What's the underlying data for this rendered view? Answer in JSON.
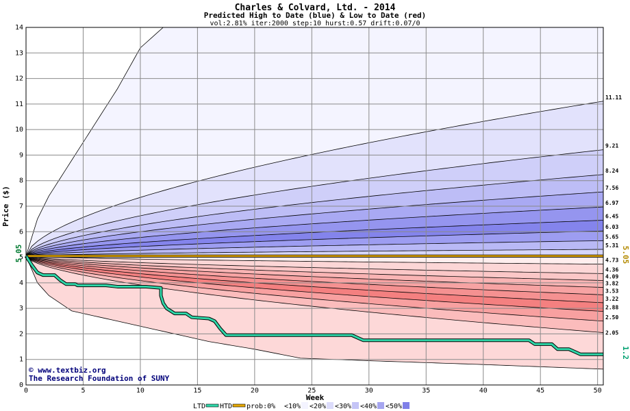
{
  "chart_data": {
    "type": "area",
    "title": "Charles & Colvard, Ltd. - 2014",
    "subtitle": "Predicted High to Date (blue) &  Low to Date (red)",
    "params": "vol:2.81% iter:2000 step:10 hurst:0.57 drift:0.07/0",
    "xlabel": "Week",
    "ylabel": "Price ($)",
    "xlim": [
      0,
      50.5
    ],
    "ylim": [
      0,
      14
    ],
    "x_ticks": [
      "0",
      "5",
      "10",
      "15",
      "20",
      "25",
      "30",
      "35",
      "40",
      "45",
      "50"
    ],
    "y_ticks": [
      "0",
      "1",
      "2",
      "3",
      "4",
      "5",
      "6",
      "7",
      "8",
      "9",
      "10",
      "11",
      "12",
      "13",
      "14"
    ],
    "grid": true,
    "start_price": 5.05,
    "start_label": "5.05",
    "right_start_label": "5.05",
    "last_price_label": "1.2",
    "high_envelope": {
      "max": [
        [
          0,
          5.05
        ],
        [
          1,
          6.5
        ],
        [
          2,
          7.4
        ],
        [
          5,
          9.5
        ],
        [
          8,
          11.6
        ],
        [
          10,
          13.2
        ],
        [
          12,
          14.0
        ],
        [
          50.5,
          14.0
        ]
      ],
      "end_values": [
        11.11,
        9.21,
        8.24,
        7.56,
        6.97,
        6.45,
        6.03,
        5.65,
        5.31
      ]
    },
    "low_envelope": {
      "min": [
        [
          0,
          5.05
        ],
        [
          1,
          4.0
        ],
        [
          2,
          3.5
        ],
        [
          4,
          2.9
        ],
        [
          8,
          2.5
        ],
        [
          12,
          2.1
        ],
        [
          16,
          1.7
        ],
        [
          20,
          1.4
        ],
        [
          24,
          1.05
        ],
        [
          30,
          0.95
        ],
        [
          40,
          0.8
        ],
        [
          50.5,
          0.62
        ]
      ],
      "end_values": [
        4.73,
        4.36,
        4.09,
        3.82,
        3.53,
        3.22,
        2.88,
        2.5,
        2.05
      ]
    },
    "right_labels": [
      "11.11",
      "9.21",
      "8.24",
      "7.56",
      "6.97",
      "6.45",
      "6.03",
      "5.65",
      "5.31",
      "4.73",
      "4.36",
      "4.09",
      "3.82",
      "3.53",
      "3.22",
      "2.88",
      "2.50",
      "2.05"
    ],
    "htd_series": [
      [
        0,
        5.05
      ],
      [
        50.5,
        5.05
      ]
    ],
    "ltd_series": [
      [
        0,
        5.05
      ],
      [
        0.5,
        4.7
      ],
      [
        1,
        4.4
      ],
      [
        1.5,
        4.3
      ],
      [
        2.5,
        4.3
      ],
      [
        3,
        4.1
      ],
      [
        3.5,
        3.95
      ],
      [
        4.3,
        3.95
      ],
      [
        4.5,
        3.9
      ],
      [
        7,
        3.9
      ],
      [
        8,
        3.85
      ],
      [
        10.5,
        3.85
      ],
      [
        11.8,
        3.8
      ],
      [
        11.8,
        3.5
      ],
      [
        12,
        3.2
      ],
      [
        12.3,
        3.0
      ],
      [
        13,
        2.8
      ],
      [
        14,
        2.8
      ],
      [
        14.5,
        2.65
      ],
      [
        16,
        2.6
      ],
      [
        16.5,
        2.5
      ],
      [
        17,
        2.2
      ],
      [
        17.5,
        1.95
      ],
      [
        28.5,
        1.95
      ],
      [
        29.5,
        1.75
      ],
      [
        44,
        1.75
      ],
      [
        44.5,
        1.6
      ],
      [
        46,
        1.6
      ],
      [
        46.5,
        1.4
      ],
      [
        47.5,
        1.4
      ],
      [
        48,
        1.3
      ],
      [
        48.5,
        1.2
      ],
      [
        50.5,
        1.2
      ]
    ],
    "legend": [
      {
        "label": "LTD",
        "color": "#2fd6a8"
      },
      {
        "label": "HTD",
        "color": "#e6a800"
      },
      {
        "label": "prob:0%",
        "color": "#ffffff"
      },
      {
        "label": "<10%",
        "color": "#f3f3ff"
      },
      {
        "label": "<20%",
        "color": "#dcdcfb"
      },
      {
        "label": "<30%",
        "color": "#c4c4f6"
      },
      {
        "label": "<40%",
        "color": "#a6a6f0"
      },
      {
        "label": "<50%",
        "color": "#8080e8"
      }
    ],
    "colors": {
      "blue_bands": [
        "#f4f4ff",
        "#e2e2fc",
        "#cfcff9",
        "#bdbdf6",
        "#a9a9f3",
        "#9595ef",
        "#8484ec",
        "#9d9df1",
        "#b9b9f6",
        "#d6d6fb"
      ],
      "red_bands": [
        "#ffeeee",
        "#fcd6d6",
        "#fbc7c7",
        "#f9b4b4",
        "#f7a3a3",
        "#f59191",
        "#f48080",
        "#f8a0a0",
        "#fbbcbc",
        "#fdd8d8"
      ],
      "ltd": "#2fd6a8",
      "htd": "#e6a800"
    }
  },
  "watermark": {
    "line1": "www.textbiz.org",
    "line2": "The Research Foundation of SUNY"
  }
}
